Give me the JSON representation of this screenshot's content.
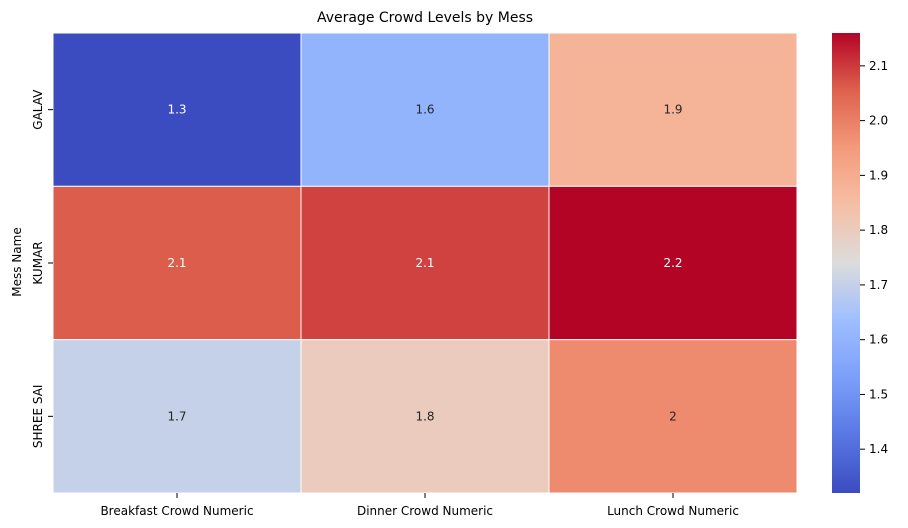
{
  "chart_data": {
    "type": "heatmap",
    "title": "Average Crowd Levels by Mess",
    "xlabel": "",
    "ylabel": "Mess Name",
    "x_categories": [
      "Breakfast Crowd Numeric",
      "Dinner Crowd Numeric",
      "Lunch Crowd Numeric"
    ],
    "y_categories": [
      "GALAV",
      "KUMAR",
      "SHREE SAI"
    ],
    "values": [
      [
        1.32,
        1.6,
        1.88
      ],
      [
        2.06,
        2.09,
        2.16
      ],
      [
        1.7,
        1.8,
        1.98
      ]
    ],
    "annotations": [
      [
        "1.3",
        "1.6",
        "1.9"
      ],
      [
        "2.1",
        "2.1",
        "2.2"
      ],
      [
        "1.7",
        "1.8",
        "2"
      ]
    ],
    "colormap": "coolwarm",
    "colorbar": {
      "range": [
        1.32,
        2.16
      ],
      "ticks": [
        1.4,
        1.5,
        1.6,
        1.7,
        1.8,
        1.9,
        2.0,
        2.1
      ],
      "tick_labels": [
        "1.4",
        "1.5",
        "1.6",
        "1.7",
        "1.8",
        "1.9",
        "2.0",
        "2.1"
      ]
    },
    "grid": false,
    "legend": "colorbar-right"
  }
}
